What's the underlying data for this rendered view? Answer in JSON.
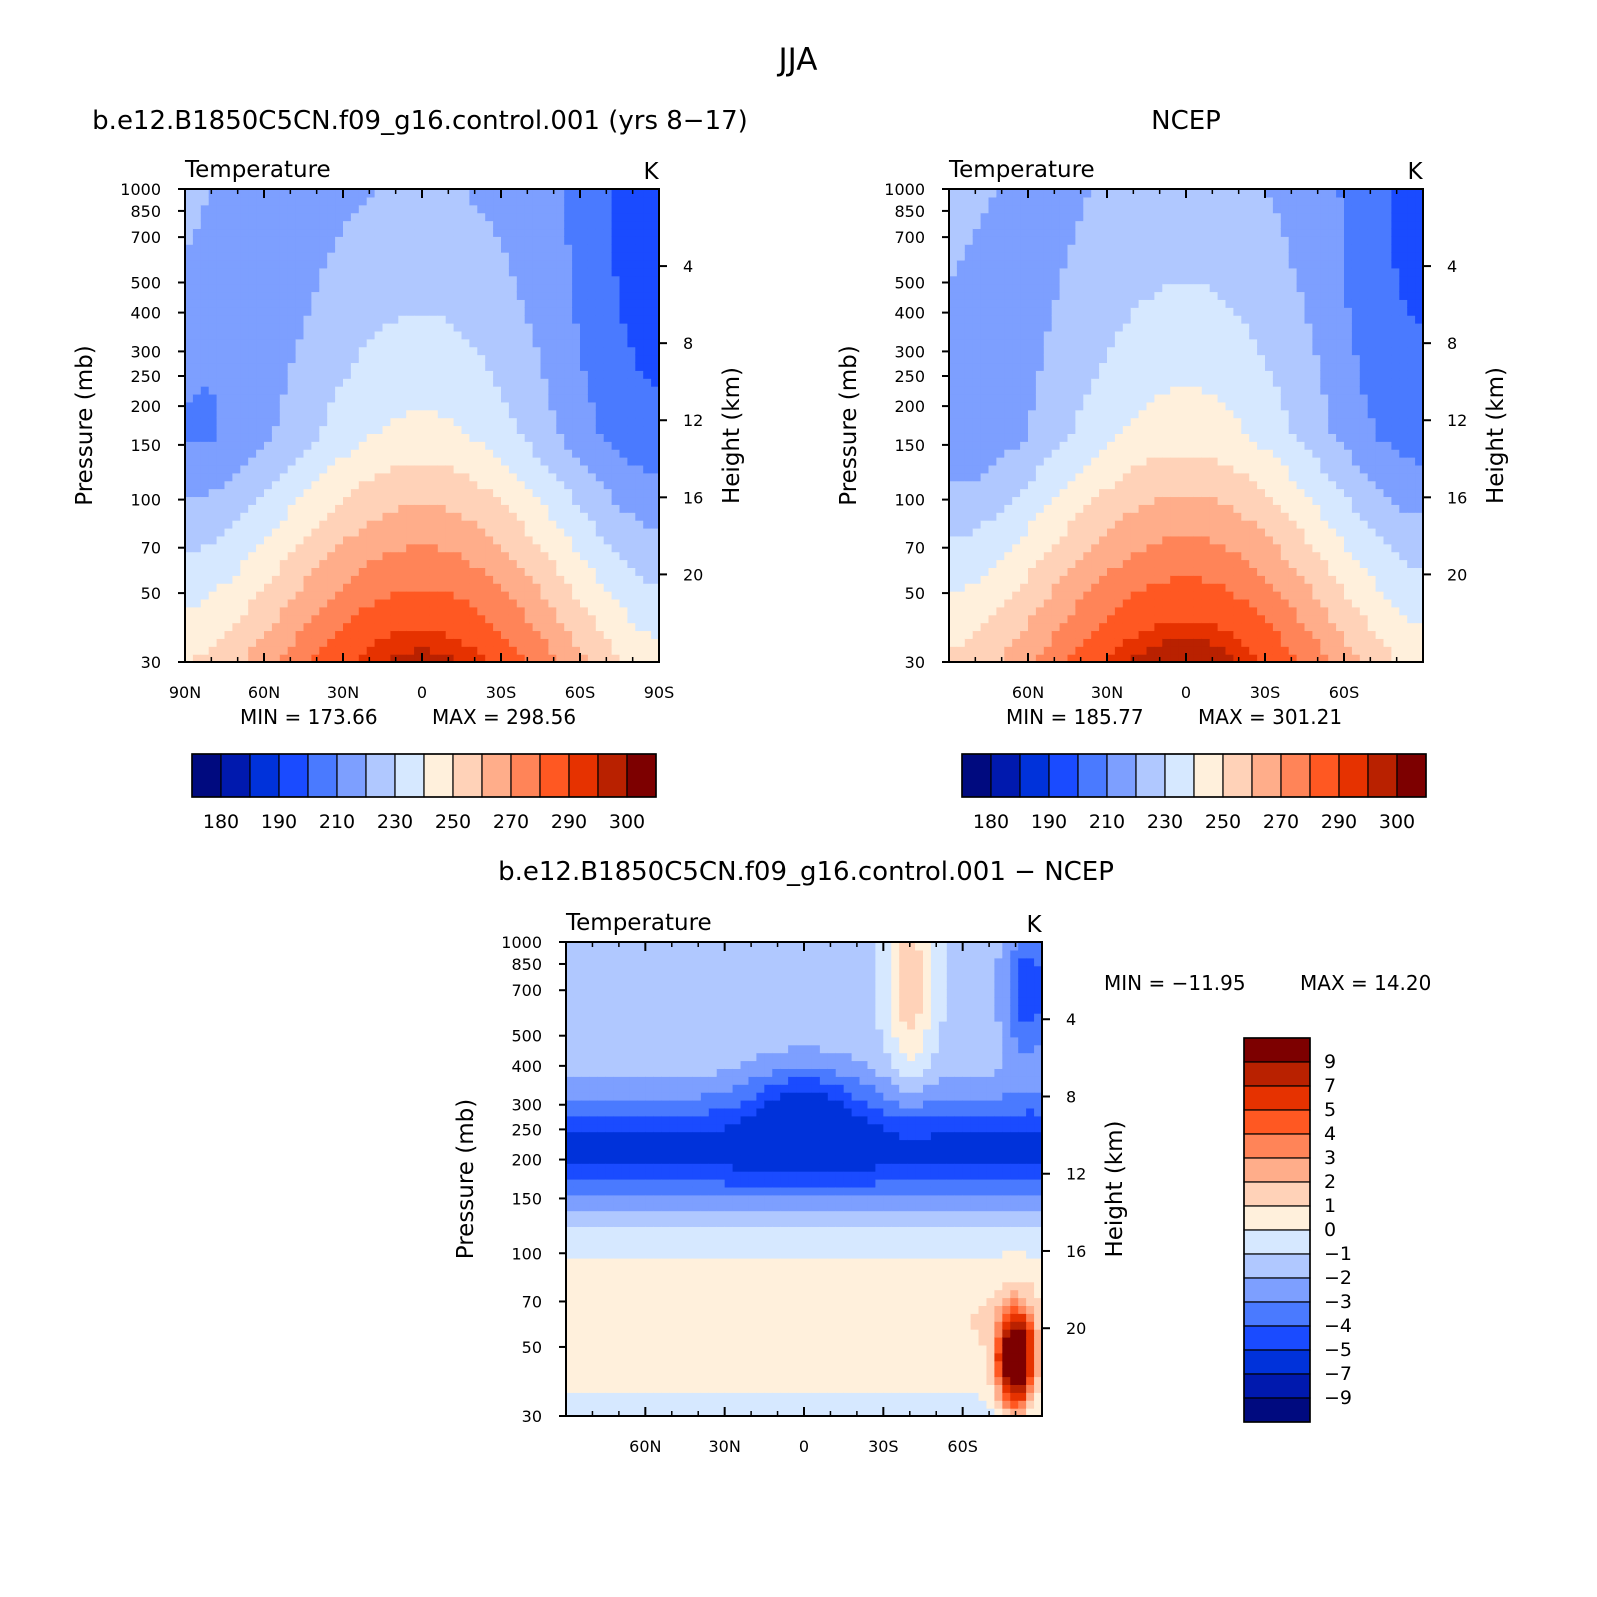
{
  "figure": {
    "title": "JJA"
  },
  "colors": {
    "temp_scale": [
      "#000a7f",
      "#0019ae",
      "#0032da",
      "#1a4bff",
      "#4a7aff",
      "#7d9fff",
      "#b0c8ff",
      "#d6e8ff",
      "#fff0dc",
      "#ffd2b8",
      "#ffad8a",
      "#ff8458",
      "#ff5822",
      "#e63200",
      "#b92100",
      "#7d0000"
    ],
    "diff_scale": [
      "#000a7f",
      "#0019ae",
      "#0032da",
      "#1a4bff",
      "#4a7aff",
      "#7d9fff",
      "#b0c8ff",
      "#d6e8ff",
      "#fff0dc",
      "#ffd2b8",
      "#ffad8a",
      "#ff8458",
      "#ff5822",
      "#e63200",
      "#b92100",
      "#7d0000"
    ]
  },
  "chart_data": [
    {
      "type": "heatmap",
      "title": "b.e12.B1850C5CN.f09_g16.control.001 (yrs 8-17)",
      "variable": "Temperature",
      "units": "K",
      "ylabel": "Pressure (mb)",
      "y2label": "Height (km)",
      "x": [
        90,
        60,
        30,
        0,
        -30,
        -60,
        -90
      ],
      "x_tick_labels": [
        "90N",
        "60N",
        "30N",
        "0",
        "30S",
        "60S",
        "90S"
      ],
      "y_tick_labels": [
        "30",
        "50",
        "70",
        "100",
        "150",
        "200",
        "250",
        "300",
        "400",
        "500",
        "700",
        "850",
        "1000"
      ],
      "y2_tick_labels": [
        "4",
        "8",
        "12",
        "16",
        "20"
      ],
      "ylim": [
        1000,
        30
      ],
      "min_label": "MIN = 173.66",
      "max_label": "MAX = 298.56",
      "colorbar_labels": [
        "180",
        "190",
        "210",
        "230",
        "250",
        "270",
        "290",
        "300"
      ]
    },
    {
      "type": "heatmap",
      "title": "NCEP",
      "variable": "Temperature",
      "units": "K",
      "ylabel": "Pressure (mb)",
      "y2label": "Height (km)",
      "x": [
        60,
        30,
        0,
        -30,
        -60
      ],
      "x_tick_labels": [
        "60N",
        "30N",
        "0",
        "30S",
        "60S"
      ],
      "y_tick_labels": [
        "30",
        "50",
        "70",
        "100",
        "150",
        "200",
        "250",
        "300",
        "400",
        "500",
        "700",
        "850",
        "1000"
      ],
      "y2_tick_labels": [
        "4",
        "8",
        "12",
        "16",
        "20"
      ],
      "ylim": [
        1000,
        30
      ],
      "min_label": "MIN = 185.77",
      "max_label": "MAX = 301.21",
      "colorbar_labels": [
        "180",
        "190",
        "210",
        "230",
        "250",
        "270",
        "290",
        "300"
      ]
    },
    {
      "type": "heatmap",
      "title": "b.e12.B1850C5CN.f09_g16.control.001 - NCEP",
      "variable": "Temperature",
      "units": "K",
      "ylabel": "Pressure (mb)",
      "y2label": "Height (km)",
      "x": [
        60,
        30,
        0,
        -30,
        -60
      ],
      "x_tick_labels": [
        "60N",
        "30N",
        "0",
        "30S",
        "60S"
      ],
      "y_tick_labels": [
        "30",
        "50",
        "70",
        "100",
        "150",
        "200",
        "250",
        "300",
        "400",
        "500",
        "700",
        "850",
        "1000"
      ],
      "y2_tick_labels": [
        "4",
        "8",
        "12",
        "16",
        "20"
      ],
      "ylim": [
        1000,
        30
      ],
      "min_label": "MIN = -11.95",
      "max_label": "MAX = 14.20",
      "colorbar_labels": [
        "9",
        "7",
        "5",
        "4",
        "3",
        "2",
        "1",
        "0",
        "-1",
        "-2",
        "-3",
        "-4",
        "-5",
        "-7",
        "-9"
      ]
    }
  ]
}
